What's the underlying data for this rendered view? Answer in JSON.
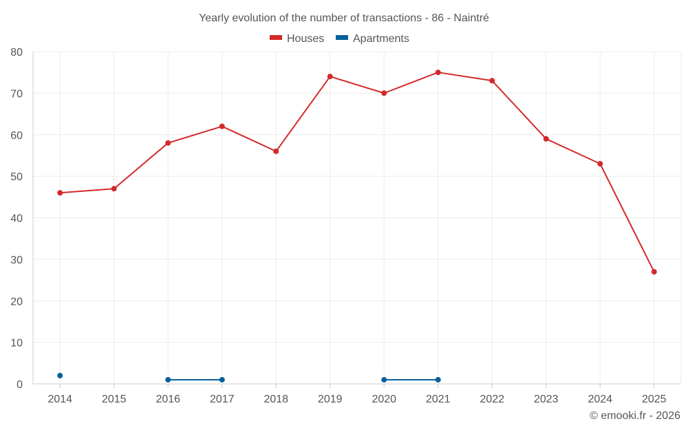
{
  "chart_data": {
    "type": "line",
    "title": "Yearly evolution of the number of transactions - 86 - Naintré",
    "categories": [
      "2014",
      "2015",
      "2016",
      "2017",
      "2018",
      "2019",
      "2020",
      "2021",
      "2022",
      "2023",
      "2024",
      "2025"
    ],
    "yticks": [
      "0",
      "10",
      "20",
      "30",
      "40",
      "50",
      "60",
      "70",
      "80"
    ],
    "ylim": [
      0,
      80
    ],
    "grid": true,
    "legend_position": "top-center",
    "series": [
      {
        "name": "Houses",
        "color": "#d3292a",
        "values": [
          46,
          47,
          58,
          62,
          56,
          74,
          70,
          75,
          73,
          59,
          53,
          27
        ]
      },
      {
        "name": "Apartments",
        "color": "#07609a",
        "values": [
          2,
          null,
          1,
          1,
          null,
          null,
          1,
          1,
          null,
          null,
          null,
          null
        ]
      }
    ],
    "credit": "© emooki.fr - 2026"
  }
}
